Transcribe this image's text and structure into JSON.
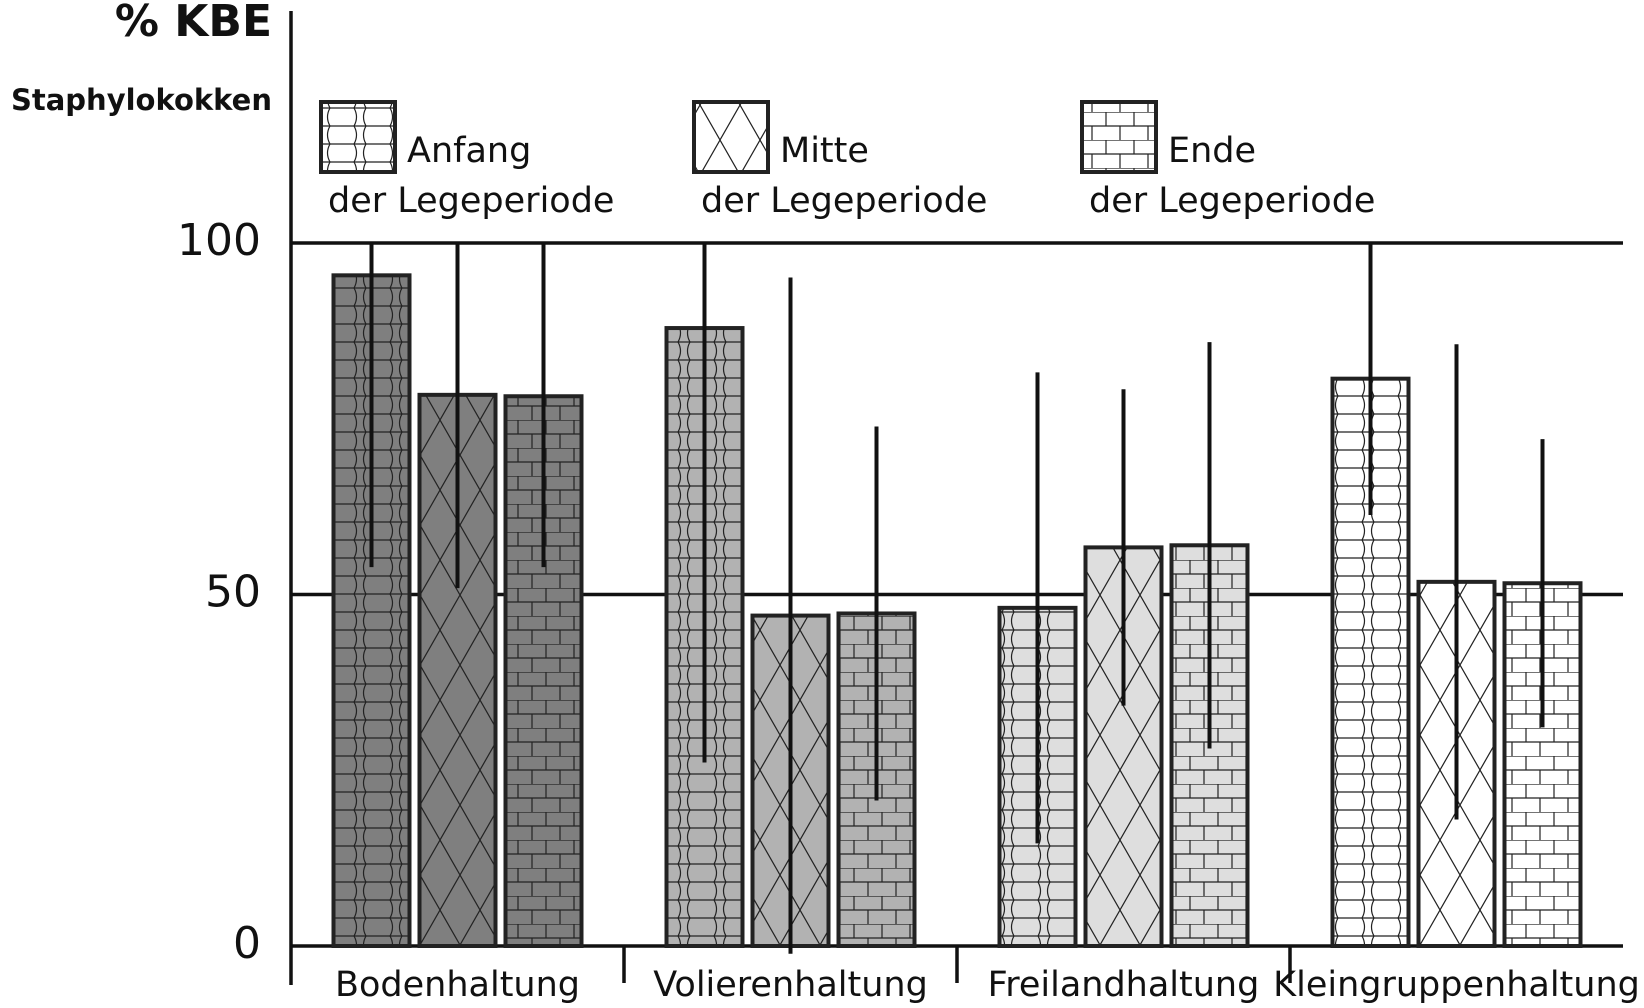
{
  "chart_data": {
    "type": "bar",
    "ylabel": "% KBE",
    "subtitle": "Staphylokokken",
    "categories": [
      "Bodenhaltung",
      "Volierenhaltung",
      "Freilandhaltung",
      "Kleingruppenhaltung"
    ],
    "category_colors": [
      "#7f7f7f",
      "#b2b2b2",
      "#dedede",
      "#ffffff"
    ],
    "series": [
      {
        "name": "Anfang\nder Legeperiode",
        "pattern": "scallop",
        "values": [
          95.4,
          87.9,
          48.1,
          80.7
        ],
        "errors": [
          41.5,
          61.8,
          33.5,
          19.4
        ]
      },
      {
        "name": "Mitte\nder Legeperiode",
        "pattern": "cross",
        "values": [
          78.4,
          47.0,
          56.7,
          51.8
        ],
        "errors": [
          27.5,
          48.1,
          22.5,
          33.8
        ]
      },
      {
        "name": "Ende\nder Legeperiode",
        "pattern": "brick",
        "values": [
          78.2,
          47.3,
          57.0,
          51.6
        ],
        "errors": [
          24.3,
          26.6,
          28.9,
          20.5
        ]
      }
    ],
    "ylim": [
      0,
      133
    ],
    "yticks": [
      0,
      50,
      100
    ],
    "grid": true
  }
}
